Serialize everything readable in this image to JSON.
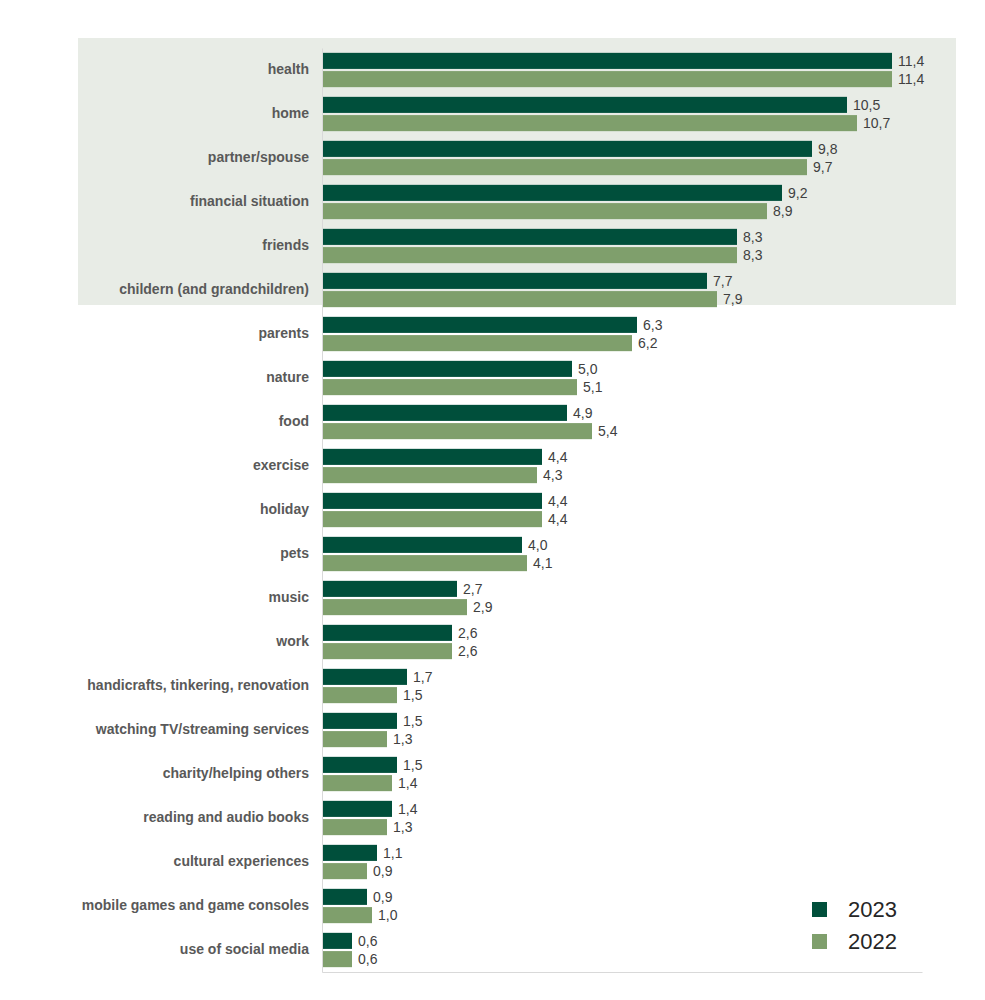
{
  "chart_data": {
    "type": "bar",
    "orientation": "horizontal",
    "categories": [
      "health",
      "home",
      "partner/spouse",
      "financial situation",
      "friends",
      "childern (and grandchildren)",
      "parents",
      "nature",
      "food",
      "exercise",
      "holiday",
      "pets",
      "music",
      "work",
      "handicrafts, tinkering, renovation",
      "watching TV/streaming services",
      "charity/helping others",
      "reading and audio books",
      "cultural experiences",
      "mobile games and game consoles",
      "use of social media"
    ],
    "series": [
      {
        "name": "2023",
        "color": "#004f3b",
        "values": [
          11.4,
          10.5,
          9.8,
          9.2,
          8.3,
          7.7,
          6.3,
          5.0,
          4.9,
          4.4,
          4.4,
          4.0,
          2.7,
          2.6,
          1.7,
          1.5,
          1.5,
          1.4,
          1.1,
          0.9,
          0.6
        ],
        "value_labels": [
          "11,4",
          "10,5",
          "9,8",
          "9,2",
          "8,3",
          "7,7",
          "6,3",
          "5,0",
          "4,9",
          "4,4",
          "4,4",
          "4,0",
          "2,7",
          "2,6",
          "1,7",
          "1,5",
          "1,5",
          "1,4",
          "1,1",
          "0,9",
          "0,6"
        ]
      },
      {
        "name": "2022",
        "color": "#7f9f6c",
        "values": [
          11.4,
          10.7,
          9.7,
          8.9,
          8.3,
          7.9,
          6.2,
          5.1,
          5.4,
          4.3,
          4.4,
          4.1,
          2.9,
          2.6,
          1.5,
          1.3,
          1.4,
          1.3,
          0.9,
          1.0,
          0.6
        ],
        "value_labels": [
          "11,4",
          "10,7",
          "9,7",
          "8,9",
          "8,3",
          "7,9",
          "6,2",
          "5,1",
          "5,4",
          "4,3",
          "4,4",
          "4,1",
          "2,9",
          "2,6",
          "1,5",
          "1,3",
          "1,4",
          "1,3",
          "0,9",
          "1,0",
          "0,6"
        ]
      }
    ],
    "xlim": [
      0,
      12
    ],
    "xticks": [],
    "tick_labels": "y",
    "grid": false,
    "data_labels": true,
    "legend": "lower right"
  }
}
